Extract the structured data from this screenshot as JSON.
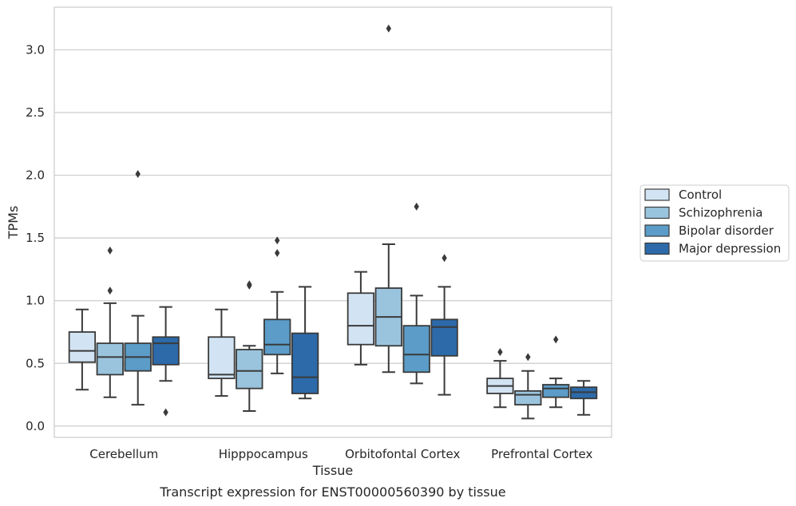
{
  "chart_data": {
    "type": "box",
    "caption": "Transcript expression for ENST00000560390 by tissue",
    "xlabel": "Tissue",
    "ylabel": "TPMs",
    "ylim": [
      -0.09,
      3.34
    ],
    "yticks": [
      0.0,
      0.5,
      1.0,
      1.5,
      2.0,
      2.5,
      3.0
    ],
    "ytick_labels": [
      "0.0",
      "0.5",
      "1.0",
      "1.5",
      "2.0",
      "2.5",
      "3.0"
    ],
    "grid": "horizontal",
    "legend_position": "right",
    "categories": [
      "Cerebellum",
      "Hipppocampus",
      "Orbitofontal Cortex",
      "Prefrontal Cortex"
    ],
    "series": [
      {
        "name": "Control",
        "color": "#d2e4f4",
        "boxes": [
          {
            "whislo": 0.29,
            "q1": 0.51,
            "med": 0.6,
            "q3": 0.75,
            "whishi": 0.93,
            "fliers": []
          },
          {
            "whislo": 0.24,
            "q1": 0.38,
            "med": 0.41,
            "q3": 0.71,
            "whishi": 0.93,
            "fliers": []
          },
          {
            "whislo": 0.49,
            "q1": 0.65,
            "med": 0.8,
            "q3": 1.06,
            "whishi": 1.23,
            "fliers": []
          },
          {
            "whislo": 0.15,
            "q1": 0.26,
            "med": 0.32,
            "q3": 0.38,
            "whishi": 0.52,
            "fliers": [
              0.59
            ]
          }
        ]
      },
      {
        "name": "Schizophrenia",
        "color": "#9ac4de",
        "boxes": [
          {
            "whislo": 0.23,
            "q1": 0.41,
            "med": 0.55,
            "q3": 0.66,
            "whishi": 0.98,
            "fliers": [
              1.08,
              1.4
            ]
          },
          {
            "whislo": 0.12,
            "q1": 0.3,
            "med": 0.44,
            "q3": 0.61,
            "whishi": 0.64,
            "fliers": [
              1.12,
              1.13
            ]
          },
          {
            "whislo": 0.43,
            "q1": 0.64,
            "med": 0.87,
            "q3": 1.1,
            "whishi": 1.45,
            "fliers": [
              3.17
            ]
          },
          {
            "whislo": 0.06,
            "q1": 0.17,
            "med": 0.25,
            "q3": 0.28,
            "whishi": 0.44,
            "fliers": [
              0.55
            ]
          }
        ]
      },
      {
        "name": "Bipolar disorder",
        "color": "#5b9cc8",
        "boxes": [
          {
            "whislo": 0.17,
            "q1": 0.44,
            "med": 0.55,
            "q3": 0.66,
            "whishi": 0.88,
            "fliers": [
              2.01
            ]
          },
          {
            "whislo": 0.42,
            "q1": 0.57,
            "med": 0.65,
            "q3": 0.85,
            "whishi": 1.07,
            "fliers": [
              1.38,
              1.48
            ]
          },
          {
            "whislo": 0.34,
            "q1": 0.43,
            "med": 0.57,
            "q3": 0.8,
            "whishi": 1.04,
            "fliers": [
              1.75
            ]
          },
          {
            "whislo": 0.15,
            "q1": 0.23,
            "med": 0.3,
            "q3": 0.33,
            "whishi": 0.38,
            "fliers": [
              0.69
            ]
          }
        ]
      },
      {
        "name": "Major depression",
        "color": "#2c6aaa",
        "boxes": [
          {
            "whislo": 0.36,
            "q1": 0.49,
            "med": 0.66,
            "q3": 0.71,
            "whishi": 0.95,
            "fliers": [
              0.11
            ]
          },
          {
            "whislo": 0.22,
            "q1": 0.26,
            "med": 0.39,
            "q3": 0.74,
            "whishi": 1.11,
            "fliers": []
          },
          {
            "whislo": 0.25,
            "q1": 0.56,
            "med": 0.79,
            "q3": 0.85,
            "whishi": 1.11,
            "fliers": [
              1.34
            ]
          },
          {
            "whislo": 0.09,
            "q1": 0.22,
            "med": 0.27,
            "q3": 0.31,
            "whishi": 0.36,
            "fliers": []
          }
        ]
      }
    ]
  }
}
